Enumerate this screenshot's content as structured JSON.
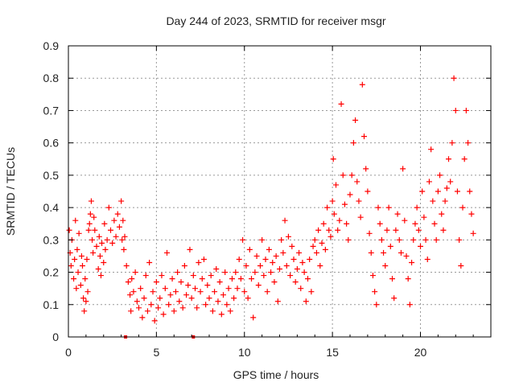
{
  "chart_data": {
    "type": "scatter",
    "title": "Day 244 of 2023, SRMTID for receiver msgr",
    "xlabel": "GPS time / hours",
    "ylabel": "SRMTID / TECUs",
    "xlim": [
      0,
      24
    ],
    "ylim": [
      0,
      0.9
    ],
    "xticks": [
      "0",
      "5",
      "10",
      "15",
      "20"
    ],
    "xtick_values": [
      0,
      5,
      10,
      15,
      20
    ],
    "yticks": [
      "0",
      "0.1",
      "0.2",
      "0.3",
      "0.4",
      "0.5",
      "0.6",
      "0.7",
      "0.8",
      "0.9"
    ],
    "ytick_values": [
      0,
      0.1,
      0.2,
      0.3,
      0.4,
      0.5,
      0.6,
      0.7,
      0.8,
      0.9
    ],
    "grid": true,
    "marker": "+",
    "color": "#ff0000",
    "baseline_markers_hours": [
      3.25,
      7.1
    ],
    "series": [
      {
        "name": "SRMTID",
        "points": [
          [
            0.05,
            0.33
          ],
          [
            0.1,
            0.26
          ],
          [
            0.15,
            0.22
          ],
          [
            0.2,
            0.3
          ],
          [
            0.3,
            0.18
          ],
          [
            0.35,
            0.24
          ],
          [
            0.4,
            0.36
          ],
          [
            0.45,
            0.15
          ],
          [
            0.5,
            0.27
          ],
          [
            0.55,
            0.2
          ],
          [
            0.6,
            0.32
          ],
          [
            0.7,
            0.16
          ],
          [
            0.75,
            0.25
          ],
          [
            0.8,
            0.22
          ],
          [
            0.85,
            0.12
          ],
          [
            0.9,
            0.08
          ],
          [
            0.95,
            0.18
          ],
          [
            1.0,
            0.11
          ],
          [
            1.05,
            0.24
          ],
          [
            1.1,
            0.14
          ],
          [
            1.15,
            0.33
          ],
          [
            1.2,
            0.35
          ],
          [
            1.25,
            0.38
          ],
          [
            1.3,
            0.42
          ],
          [
            1.35,
            0.3
          ],
          [
            1.4,
            0.26
          ],
          [
            1.45,
            0.37
          ],
          [
            1.5,
            0.33
          ],
          [
            1.6,
            0.28
          ],
          [
            1.7,
            0.21
          ],
          [
            1.75,
            0.31
          ],
          [
            1.8,
            0.25
          ],
          [
            1.85,
            0.19
          ],
          [
            1.9,
            0.29
          ],
          [
            2.0,
            0.23
          ],
          [
            2.05,
            0.35
          ],
          [
            2.1,
            0.27
          ],
          [
            2.2,
            0.3
          ],
          [
            2.3,
            0.4
          ],
          [
            2.4,
            0.33
          ],
          [
            2.5,
            0.29
          ],
          [
            2.6,
            0.36
          ],
          [
            2.7,
            0.31
          ],
          [
            2.8,
            0.38
          ],
          [
            2.9,
            0.34
          ],
          [
            3.0,
            0.42
          ],
          [
            3.05,
            0.3
          ],
          [
            3.1,
            0.36
          ],
          [
            3.15,
            0.27
          ],
          [
            3.2,
            0.31
          ],
          [
            3.3,
            0.22
          ],
          [
            3.4,
            0.17
          ],
          [
            3.5,
            0.13
          ],
          [
            3.55,
            0.08
          ],
          [
            3.6,
            0.18
          ],
          [
            3.7,
            0.14
          ],
          [
            3.8,
            0.2
          ],
          [
            3.9,
            0.11
          ],
          [
            4.0,
            0.09
          ],
          [
            4.1,
            0.15
          ],
          [
            4.2,
            0.06
          ],
          [
            4.3,
            0.12
          ],
          [
            4.4,
            0.19
          ],
          [
            4.5,
            0.08
          ],
          [
            4.6,
            0.23
          ],
          [
            4.7,
            0.1
          ],
          [
            4.8,
            0.14
          ],
          [
            4.9,
            0.05
          ],
          [
            5.0,
            0.17
          ],
          [
            5.1,
            0.09
          ],
          [
            5.2,
            0.12
          ],
          [
            5.3,
            0.19
          ],
          [
            5.4,
            0.07
          ],
          [
            5.5,
            0.15
          ],
          [
            5.6,
            0.26
          ],
          [
            5.7,
            0.1
          ],
          [
            5.8,
            0.13
          ],
          [
            5.9,
            0.18
          ],
          [
            6.0,
            0.08
          ],
          [
            6.1,
            0.14
          ],
          [
            6.2,
            0.2
          ],
          [
            6.3,
            0.11
          ],
          [
            6.4,
            0.17
          ],
          [
            6.5,
            0.09
          ],
          [
            6.6,
            0.22
          ],
          [
            6.7,
            0.13
          ],
          [
            6.8,
            0.16
          ],
          [
            6.9,
            0.27
          ],
          [
            7.0,
            0.12
          ],
          [
            7.1,
            0.19
          ],
          [
            7.2,
            0.15
          ],
          [
            7.3,
            0.09
          ],
          [
            7.4,
            0.23
          ],
          [
            7.5,
            0.14
          ],
          [
            7.6,
            0.18
          ],
          [
            7.7,
            0.24
          ],
          [
            7.8,
            0.1
          ],
          [
            7.9,
            0.16
          ],
          [
            8.0,
            0.12
          ],
          [
            8.1,
            0.19
          ],
          [
            8.2,
            0.08
          ],
          [
            8.3,
            0.14
          ],
          [
            8.4,
            0.21
          ],
          [
            8.5,
            0.11
          ],
          [
            8.6,
            0.17
          ],
          [
            8.7,
            0.07
          ],
          [
            8.8,
            0.13
          ],
          [
            8.9,
            0.2
          ],
          [
            9.0,
            0.1
          ],
          [
            9.1,
            0.15
          ],
          [
            9.2,
            0.08
          ],
          [
            9.3,
            0.18
          ],
          [
            9.4,
            0.12
          ],
          [
            9.5,
            0.2
          ],
          [
            9.6,
            0.15
          ],
          [
            9.7,
            0.24
          ],
          [
            9.8,
            0.18
          ],
          [
            9.9,
            0.3
          ],
          [
            10.0,
            0.14
          ],
          [
            10.1,
            0.22
          ],
          [
            10.2,
            0.12
          ],
          [
            10.3,
            0.27
          ],
          [
            10.4,
            0.18
          ],
          [
            10.5,
            0.06
          ],
          [
            10.6,
            0.2
          ],
          [
            10.7,
            0.25
          ],
          [
            10.8,
            0.16
          ],
          [
            10.9,
            0.22
          ],
          [
            11.0,
            0.3
          ],
          [
            11.1,
            0.19
          ],
          [
            11.2,
            0.24
          ],
          [
            11.3,
            0.14
          ],
          [
            11.4,
            0.27
          ],
          [
            11.5,
            0.2
          ],
          [
            11.6,
            0.23
          ],
          [
            11.7,
            0.17
          ],
          [
            11.8,
            0.25
          ],
          [
            11.9,
            0.11
          ],
          [
            12.0,
            0.21
          ],
          [
            12.1,
            0.3
          ],
          [
            12.2,
            0.26
          ],
          [
            12.3,
            0.36
          ],
          [
            12.4,
            0.22
          ],
          [
            12.5,
            0.31
          ],
          [
            12.6,
            0.19
          ],
          [
            12.7,
            0.28
          ],
          [
            12.8,
            0.24
          ],
          [
            12.9,
            0.17
          ],
          [
            13.0,
            0.21
          ],
          [
            13.1,
            0.26
          ],
          [
            13.2,
            0.15
          ],
          [
            13.3,
            0.23
          ],
          [
            13.4,
            0.2
          ],
          [
            13.5,
            0.11
          ],
          [
            13.6,
            0.18
          ],
          [
            13.7,
            0.24
          ],
          [
            13.8,
            0.14
          ],
          [
            13.9,
            0.28
          ],
          [
            14.0,
            0.3
          ],
          [
            14.1,
            0.26
          ],
          [
            14.2,
            0.33
          ],
          [
            14.3,
            0.22
          ],
          [
            14.4,
            0.29
          ],
          [
            14.5,
            0.35
          ],
          [
            14.6,
            0.27
          ],
          [
            14.7,
            0.4
          ],
          [
            14.8,
            0.33
          ],
          [
            14.9,
            0.31
          ],
          [
            15.0,
            0.42
          ],
          [
            15.05,
            0.55
          ],
          [
            15.1,
            0.38
          ],
          [
            15.2,
            0.47
          ],
          [
            15.3,
            0.33
          ],
          [
            15.4,
            0.36
          ],
          [
            15.5,
            0.72
          ],
          [
            15.6,
            0.5
          ],
          [
            15.7,
            0.41
          ],
          [
            15.8,
            0.35
          ],
          [
            15.9,
            0.3
          ],
          [
            16.0,
            0.44
          ],
          [
            16.1,
            0.5
          ],
          [
            16.2,
            0.6
          ],
          [
            16.3,
            0.67
          ],
          [
            16.4,
            0.48
          ],
          [
            16.5,
            0.42
          ],
          [
            16.6,
            0.37
          ],
          [
            16.7,
            0.78
          ],
          [
            16.8,
            0.62
          ],
          [
            16.9,
            0.52
          ],
          [
            17.0,
            0.45
          ],
          [
            17.1,
            0.32
          ],
          [
            17.2,
            0.26
          ],
          [
            17.3,
            0.19
          ],
          [
            17.4,
            0.14
          ],
          [
            17.5,
            0.1
          ],
          [
            17.6,
            0.4
          ],
          [
            17.7,
            0.35
          ],
          [
            17.8,
            0.3
          ],
          [
            17.9,
            0.26
          ],
          [
            18.0,
            0.22
          ],
          [
            18.1,
            0.33
          ],
          [
            18.2,
            0.4
          ],
          [
            18.3,
            0.28
          ],
          [
            18.4,
            0.18
          ],
          [
            18.5,
            0.12
          ],
          [
            18.6,
            0.33
          ],
          [
            18.7,
            0.38
          ],
          [
            18.8,
            0.3
          ],
          [
            18.9,
            0.26
          ],
          [
            19.0,
            0.52
          ],
          [
            19.1,
            0.36
          ],
          [
            19.2,
            0.25
          ],
          [
            19.3,
            0.18
          ],
          [
            19.4,
            0.1
          ],
          [
            19.5,
            0.23
          ],
          [
            19.6,
            0.3
          ],
          [
            19.7,
            0.35
          ],
          [
            19.8,
            0.4
          ],
          [
            19.9,
            0.33
          ],
          [
            20.0,
            0.28
          ],
          [
            20.1,
            0.45
          ],
          [
            20.2,
            0.37
          ],
          [
            20.3,
            0.3
          ],
          [
            20.4,
            0.24
          ],
          [
            20.5,
            0.48
          ],
          [
            20.6,
            0.58
          ],
          [
            20.7,
            0.42
          ],
          [
            20.8,
            0.35
          ],
          [
            20.9,
            0.3
          ],
          [
            21.0,
            0.45
          ],
          [
            21.1,
            0.5
          ],
          [
            21.2,
            0.38
          ],
          [
            21.3,
            0.33
          ],
          [
            21.4,
            0.42
          ],
          [
            21.5,
            0.46
          ],
          [
            21.6,
            0.55
          ],
          [
            21.7,
            0.48
          ],
          [
            21.8,
            0.6
          ],
          [
            21.9,
            0.8
          ],
          [
            22.0,
            0.7
          ],
          [
            22.1,
            0.45
          ],
          [
            22.2,
            0.3
          ],
          [
            22.3,
            0.22
          ],
          [
            22.4,
            0.4
          ],
          [
            22.5,
            0.55
          ],
          [
            22.6,
            0.7
          ],
          [
            22.7,
            0.6
          ],
          [
            22.8,
            0.45
          ],
          [
            22.9,
            0.38
          ],
          [
            23.0,
            0.32
          ]
        ]
      }
    ]
  }
}
